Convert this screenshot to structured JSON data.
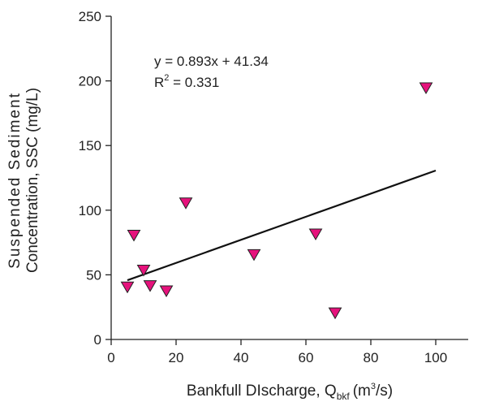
{
  "chart_data": {
    "type": "scatter",
    "title": "",
    "xlabel_main": "Bankfull DIscharge, Q",
    "xlabel_sub": "bkf",
    "xlabel_unit_pre": "(m",
    "xlabel_unit_sup": "3",
    "xlabel_unit_post": "/s)",
    "ylabel_line1": "Suspended Sediment",
    "ylabel_line2": "Concentration, SSC (mg/L)",
    "xlim": [
      0,
      110
    ],
    "ylim": [
      0,
      250
    ],
    "xticks": [
      0,
      20,
      40,
      60,
      80,
      100
    ],
    "yticks": [
      0,
      50,
      100,
      150,
      200,
      250
    ],
    "grid": false,
    "marker": "inverted-triangle",
    "marker_color": "#e6127c",
    "points": [
      {
        "x": 5,
        "y": 41
      },
      {
        "x": 7,
        "y": 81
      },
      {
        "x": 10,
        "y": 54
      },
      {
        "x": 12,
        "y": 42
      },
      {
        "x": 17,
        "y": 38
      },
      {
        "x": 23,
        "y": 106
      },
      {
        "x": 44,
        "y": 66
      },
      {
        "x": 63,
        "y": 82
      },
      {
        "x": 69,
        "y": 21
      },
      {
        "x": 97,
        "y": 195
      }
    ],
    "trendline": {
      "slope": 0.893,
      "intercept": 41.34,
      "x_start": 5,
      "x_end": 100
    },
    "annotation_eq": "y = 0.893x + 41.34",
    "annotation_r2_pre": "R",
    "annotation_r2_sup": "2",
    "annotation_r2_post": " = 0.331"
  }
}
